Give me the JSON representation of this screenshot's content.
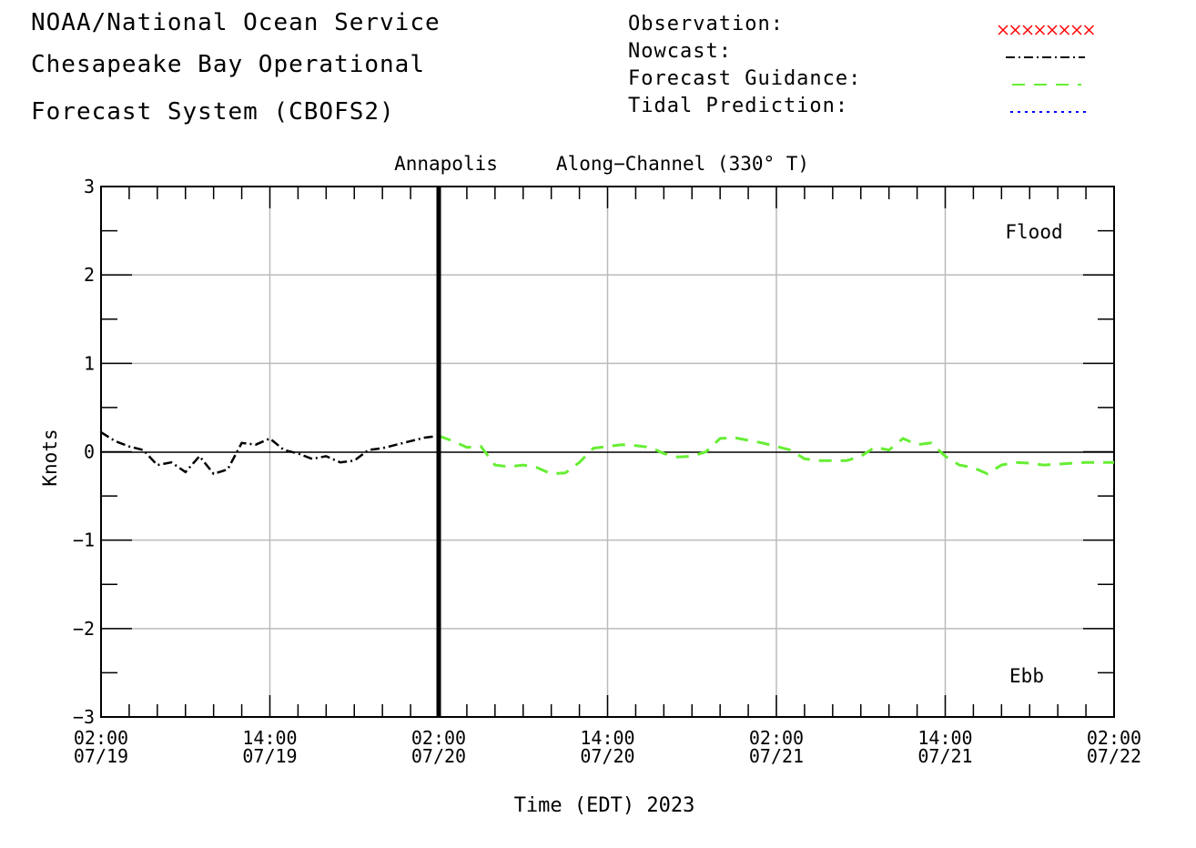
{
  "header": {
    "line1": "NOAA/National Ocean Service",
    "line2": "Chesapeake Bay Operational",
    "line3": "Forecast System (CBOFS2)"
  },
  "legend": {
    "observation": {
      "label": "Observation:",
      "color": "#ff0000",
      "style": "x-markers"
    },
    "nowcast": {
      "label": "Nowcast:",
      "color": "#000000",
      "style": "dash-dot"
    },
    "forecast": {
      "label": "Forecast Guidance:",
      "color": "#66ee33",
      "style": "dashed"
    },
    "tidal": {
      "label": "Tidal Prediction:",
      "color": "#0000ff",
      "style": "dotted"
    }
  },
  "chart_data": {
    "type": "line",
    "station": "Annapolis",
    "component": "Along−Channel (330° T)",
    "xlabel": "Time (EDT) 2023",
    "ylabel": "Knots",
    "ylim": [
      -3,
      3
    ],
    "xlim_hours": [
      0,
      72
    ],
    "grid": true,
    "now_marker_hours": 24,
    "region_labels": {
      "top": "Flood",
      "bottom": "Ebb"
    },
    "y_ticks": [
      "3",
      "2",
      "1",
      "0",
      "−1",
      "−2",
      "−3"
    ],
    "x_ticks": [
      {
        "time": "02:00",
        "date": "07/19"
      },
      {
        "time": "14:00",
        "date": "07/19"
      },
      {
        "time": "02:00",
        "date": "07/20"
      },
      {
        "time": "14:00",
        "date": "07/20"
      },
      {
        "time": "02:00",
        "date": "07/21"
      },
      {
        "time": "14:00",
        "date": "07/21"
      },
      {
        "time": "02:00",
        "date": "07/22"
      }
    ],
    "series": [
      {
        "name": "Nowcast",
        "x_hours": [
          0,
          1,
          2,
          3,
          4,
          5,
          6,
          7,
          8,
          9,
          10,
          11,
          12,
          13,
          14,
          15,
          16,
          17,
          18,
          19,
          20,
          21,
          22,
          23,
          24
        ],
        "values": [
          0.22,
          0.12,
          0.06,
          0.02,
          -0.15,
          -0.12,
          -0.23,
          -0.05,
          -0.25,
          -0.2,
          0.1,
          0.08,
          0.15,
          0.02,
          -0.02,
          -0.08,
          -0.05,
          -0.12,
          -0.1,
          0.02,
          0.04,
          0.08,
          0.12,
          0.16,
          0.18
        ]
      },
      {
        "name": "Forecast Guidance",
        "x_hours": [
          24,
          25,
          26,
          27,
          28,
          29,
          30,
          31,
          32,
          33,
          34,
          35,
          36,
          37,
          38,
          39,
          40,
          41,
          42,
          43,
          44,
          45,
          46,
          47,
          48,
          49,
          50,
          51,
          52,
          53,
          54,
          55,
          56,
          57,
          58,
          59,
          60,
          61,
          62,
          63,
          64,
          65,
          66,
          67,
          68,
          69,
          70,
          71,
          72
        ],
        "values": [
          0.18,
          0.12,
          0.05,
          0.06,
          -0.15,
          -0.17,
          -0.15,
          -0.18,
          -0.25,
          -0.24,
          -0.12,
          0.04,
          0.06,
          0.08,
          0.07,
          0.05,
          -0.02,
          -0.06,
          -0.05,
          0.0,
          0.15,
          0.16,
          0.13,
          0.1,
          0.06,
          0.02,
          -0.08,
          -0.1,
          -0.1,
          -0.1,
          -0.05,
          0.05,
          0.02,
          0.15,
          0.08,
          0.1,
          -0.05,
          -0.15,
          -0.18,
          -0.25,
          -0.15,
          -0.12,
          -0.13,
          -0.15,
          -0.14,
          -0.13,
          -0.12,
          -0.12,
          -0.12
        ]
      }
    ]
  }
}
